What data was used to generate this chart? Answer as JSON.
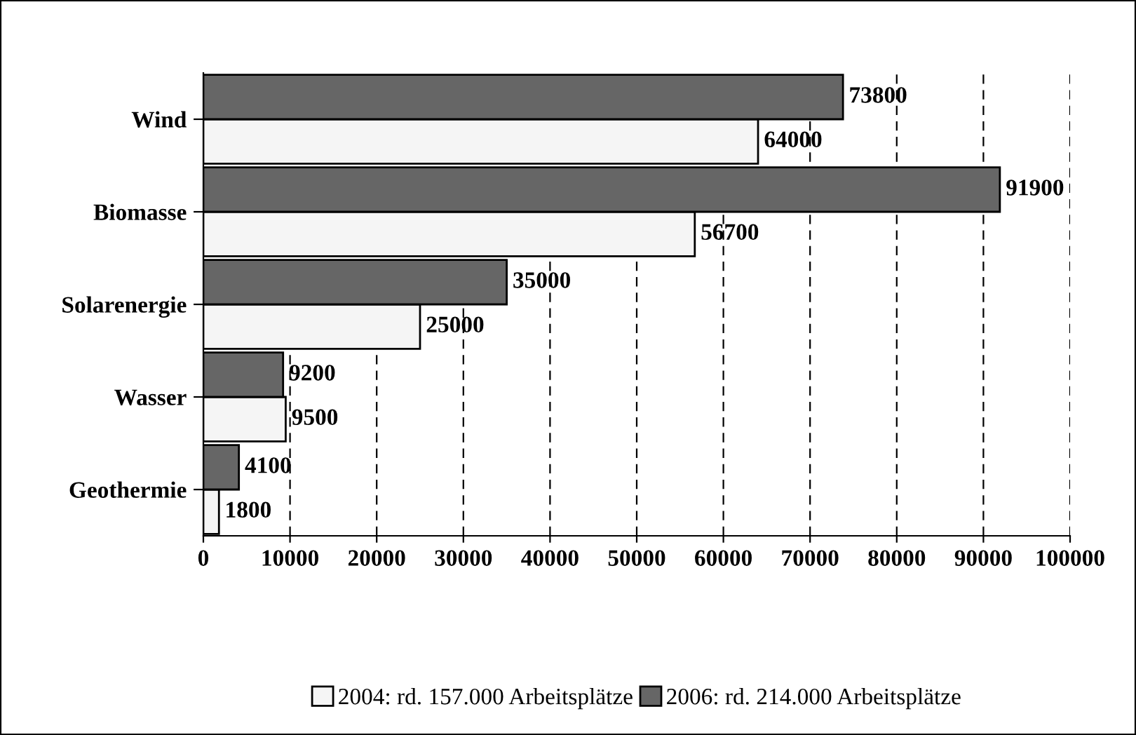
{
  "chart_data": {
    "type": "bar",
    "orientation": "horizontal",
    "categories": [
      "Wind",
      "Biomasse",
      "Solarenergie",
      "Wasser",
      "Geothermie"
    ],
    "series": [
      {
        "name": "2004: rd. 157.000 Arbeitsplätze",
        "color": "#f5f5f5",
        "values": [
          64000,
          56700,
          25000,
          9500,
          1800
        ]
      },
      {
        "name": "2006: rd. 214.000 Arbeitsplätze",
        "color": "#666666",
        "values": [
          73800,
          91900,
          35000,
          9200,
          4100
        ]
      }
    ],
    "xlim": [
      0,
      100000
    ],
    "xticks": [
      0,
      10000,
      20000,
      30000,
      40000,
      50000,
      60000,
      70000,
      80000,
      90000,
      100000
    ],
    "grid": "x",
    "legend": "bottom",
    "data_labels": true
  }
}
